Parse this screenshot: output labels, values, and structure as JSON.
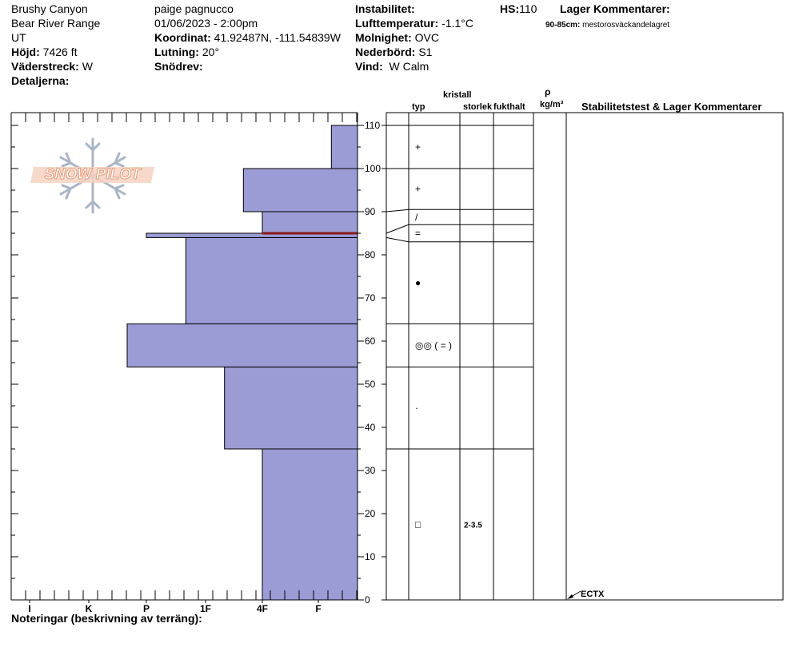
{
  "header": {
    "location": "Brushy Canyon",
    "range": "Bear River Range",
    "state": "UT",
    "elev_label": "Höjd:",
    "elev_value": "7426 ft",
    "aspect_label": "Väderstreck:",
    "aspect_value": "W",
    "details_label": "Detaljerna:",
    "observer": "paige pagnucco",
    "datetime": "01/06/2023 - 2:00pm",
    "coord_label": "Koordinat:",
    "coord_value": "41.92487N, -111.54839W",
    "slope_label": "Lutning:",
    "slope_value": "20°",
    "drift_label": "Snödrev:",
    "instab_label": "Instabilitet:",
    "airtemp_label": "Lufttemperatur:",
    "airtemp_value": "-1.1°C",
    "sky_label": "Molnighet:",
    "sky_value": "OVC",
    "precip_label": "Nederbörd:",
    "precip_value": "S1",
    "wind_label": "Vind:",
    "wind_value": "W Calm",
    "hs_label": "HS:",
    "hs_value": "110",
    "layer_comments_label": "Lager Kommentarer:",
    "layer_comment_range": "90-85cm:",
    "layer_comment_text": "mestorosväckandelagret"
  },
  "columns": {
    "kristall": "kristall",
    "typ": "typ",
    "storlek": "storlek",
    "fukthalt": "fukthalt",
    "rho": "ρ",
    "density_unit": "kg/m³",
    "stability": "Stabilitetstest & Lager Kommentarer"
  },
  "notes_label": "Noteringar (beskrivning av terräng):",
  "logo_text": "SNOW PILOT",
  "stability_test": "ECTX",
  "colors": {
    "hardness_fill": "#9b9bd6",
    "weak_layer": "#8b1a1a",
    "logo": "#f0a985"
  },
  "chart_data": {
    "type": "bar",
    "y_axis": {
      "range": [
        0,
        110
      ],
      "ticks": [
        0,
        10,
        20,
        30,
        40,
        50,
        60,
        70,
        80,
        90,
        100,
        110
      ]
    },
    "hardness_scale": [
      "I",
      "K",
      "P",
      "1F",
      "4F",
      "F"
    ],
    "hardness_layers": [
      {
        "bottom": 0,
        "top": 35,
        "hardness": "4F"
      },
      {
        "bottom": 35,
        "top": 54,
        "hardness": "1F+"
      },
      {
        "bottom": 54,
        "top": 64,
        "hardness": "P-"
      },
      {
        "bottom": 64,
        "top": 84,
        "hardness": "1F-"
      },
      {
        "bottom": 84,
        "top": 85,
        "hardness": "P"
      },
      {
        "bottom": 85,
        "top": 90,
        "hardness": "4F"
      },
      {
        "bottom": 90,
        "top": 100,
        "hardness": "4F-"
      },
      {
        "bottom": 100,
        "top": 110,
        "hardness": "F+"
      }
    ],
    "weak_layer_depth": 85,
    "grain_layers": [
      {
        "bottom": 0,
        "top": 35,
        "type": "□",
        "size": "2-3.5"
      },
      {
        "bottom": 35,
        "top": 54,
        "type": "·",
        "size": ""
      },
      {
        "bottom": 54,
        "top": 64,
        "type": "◎◎ ( = )",
        "size": ""
      },
      {
        "bottom": 64,
        "top": 83,
        "type": "●",
        "size": ""
      },
      {
        "bottom": 83,
        "top": 87,
        "type": "=",
        "size": ""
      },
      {
        "bottom": 87,
        "top": 90.5,
        "type": "/",
        "size": ""
      },
      {
        "bottom": 90.5,
        "top": 100,
        "type": "+",
        "size": ""
      },
      {
        "bottom": 100,
        "top": 110,
        "type": "+",
        "size": ""
      }
    ],
    "grain_boundaries_profile": [
      35,
      54,
      64,
      84,
      85,
      90,
      100,
      110
    ],
    "grain_boundaries_column": [
      35,
      54,
      64,
      83,
      87,
      90.5,
      100,
      110
    ]
  }
}
